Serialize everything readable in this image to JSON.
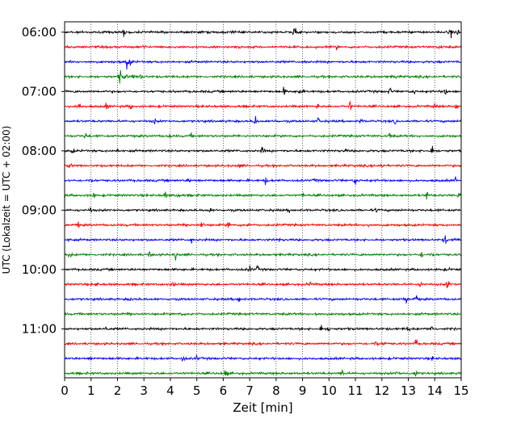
{
  "chart_data": {
    "type": "line",
    "title": "",
    "xlabel": "Zeit  [min]",
    "ylabel": "UTC (Lokalzeit = UTC + 02:00)",
    "xlim": [
      0,
      15
    ],
    "x_ticks": [
      0,
      1,
      2,
      3,
      4,
      5,
      6,
      7,
      8,
      9,
      10,
      11,
      12,
      13,
      14,
      15
    ],
    "x_grid": "dotted vertical lines at each minute",
    "y_ticks": [
      "06:00",
      "07:00",
      "08:00",
      "09:00",
      "10:00",
      "11:00"
    ],
    "trace_interval_minutes": 15,
    "trace_start": "06:00",
    "trace_count": 24,
    "trace_colors": [
      "#000000",
      "#ff0000",
      "#0000ff",
      "#008000"
    ],
    "traces": [
      {
        "start": "06:00",
        "color": "#000000",
        "events": [
          [
            2.25,
            0.7
          ],
          [
            8.7,
            1.0
          ],
          [
            14.6,
            0.8
          ],
          [
            14.85,
            0.7
          ],
          [
            6.3,
            0.2
          ]
        ]
      },
      {
        "start": "06:15",
        "color": "#ff0000",
        "events": [
          [
            0.1,
            0.6
          ],
          [
            3.0,
            0.5
          ],
          [
            6.6,
            0.25
          ],
          [
            10.3,
            0.3
          ],
          [
            14.2,
            0.5
          ]
        ]
      },
      {
        "start": "06:30",
        "color": "#0000ff",
        "events": [
          [
            2.35,
            1.0
          ],
          [
            2.5,
            0.5
          ],
          [
            9.1,
            0.2
          ]
        ]
      },
      {
        "start": "06:45",
        "color": "#008000",
        "events": [
          [
            2.1,
            1.1
          ],
          [
            2.3,
            0.6
          ],
          [
            2.6,
            0.4
          ],
          [
            2.9,
            0.4
          ],
          [
            12.5,
            0.2
          ]
        ]
      },
      {
        "start": "07:00",
        "color": "#000000",
        "events": [
          [
            8.3,
            0.6
          ],
          [
            8.9,
            0.8
          ],
          [
            12.3,
            0.6
          ],
          [
            13.2,
            0.5
          ],
          [
            14.4,
            0.5
          ]
        ]
      },
      {
        "start": "07:15",
        "color": "#ff0000",
        "events": [
          [
            0.55,
            1.0
          ],
          [
            1.6,
            0.5
          ],
          [
            2.5,
            0.4
          ],
          [
            9.6,
            0.6
          ],
          [
            10.8,
            0.7
          ],
          [
            14.0,
            0.5
          ],
          [
            14.8,
            0.5
          ]
        ]
      },
      {
        "start": "07:30",
        "color": "#0000ff",
        "events": [
          [
            3.4,
            0.4
          ],
          [
            7.2,
            1.0
          ],
          [
            8.0,
            0.3
          ],
          [
            9.6,
            0.5
          ],
          [
            11.2,
            0.4
          ],
          [
            12.5,
            0.3
          ]
        ]
      },
      {
        "start": "07:45",
        "color": "#008000",
        "events": [
          [
            0.8,
            0.5
          ],
          [
            4.0,
            0.4
          ],
          [
            4.8,
            0.3
          ],
          [
            12.3,
            0.5
          ]
        ]
      },
      {
        "start": "08:00",
        "color": "#000000",
        "events": [
          [
            0.3,
            0.3
          ],
          [
            2.0,
            0.3
          ],
          [
            7.5,
            0.7
          ],
          [
            10.6,
            0.3
          ],
          [
            13.9,
            0.8
          ]
        ]
      },
      {
        "start": "08:15",
        "color": "#ff0000",
        "events": [
          [
            0.2,
            0.6
          ],
          [
            6.6,
            0.2
          ],
          [
            12.0,
            0.5
          ]
        ]
      },
      {
        "start": "08:30",
        "color": "#0000ff",
        "events": [
          [
            1.0,
            0.3
          ],
          [
            4.7,
            0.3
          ],
          [
            7.6,
            0.5
          ],
          [
            9.5,
            0.4
          ],
          [
            11.0,
            0.7
          ],
          [
            14.8,
            0.5
          ]
        ]
      },
      {
        "start": "08:45",
        "color": "#008000",
        "events": [
          [
            1.1,
            0.3
          ],
          [
            3.8,
            0.5
          ],
          [
            4.3,
            0.4
          ],
          [
            9.0,
            0.3
          ],
          [
            13.7,
            0.8
          ],
          [
            14.9,
            0.6
          ]
        ]
      },
      {
        "start": "09:00",
        "color": "#000000",
        "events": [
          [
            1.0,
            0.3
          ],
          [
            5.5,
            0.3
          ],
          [
            8.5,
            0.3
          ],
          [
            11.8,
            0.3
          ]
        ]
      },
      {
        "start": "09:15",
        "color": "#ff0000",
        "events": [
          [
            0.5,
            0.4
          ],
          [
            4.6,
            0.7
          ],
          [
            5.2,
            0.8
          ],
          [
            6.2,
            0.6
          ],
          [
            7.0,
            0.5
          ],
          [
            11.5,
            0.4
          ]
        ]
      },
      {
        "start": "09:30",
        "color": "#0000ff",
        "events": [
          [
            0.2,
            0.3
          ],
          [
            4.8,
            0.5
          ],
          [
            8.1,
            0.3
          ],
          [
            14.4,
            0.8
          ],
          [
            14.8,
            0.5
          ]
        ]
      },
      {
        "start": "09:45",
        "color": "#008000",
        "events": [
          [
            0.2,
            0.5
          ],
          [
            3.2,
            0.5
          ],
          [
            4.2,
            0.7
          ],
          [
            13.5,
            0.4
          ],
          [
            13.9,
            0.4
          ]
        ]
      },
      {
        "start": "10:00",
        "color": "#000000",
        "events": [
          [
            7.0,
            0.6
          ],
          [
            7.3,
            0.4
          ],
          [
            14.5,
            0.2
          ]
        ]
      },
      {
        "start": "10:15",
        "color": "#ff0000",
        "events": [
          [
            1.2,
            0.3
          ],
          [
            4.1,
            0.5
          ],
          [
            9.3,
            0.3
          ],
          [
            13.5,
            0.7
          ],
          [
            14.5,
            0.9
          ]
        ]
      },
      {
        "start": "10:30",
        "color": "#0000ff",
        "events": [
          [
            6.6,
            0.6
          ],
          [
            12.9,
            0.7
          ],
          [
            13.3,
            0.6
          ],
          [
            2.5,
            0.3
          ]
        ]
      },
      {
        "start": "10:45",
        "color": "#008000",
        "events": [
          [
            2.5,
            0.9
          ],
          [
            4.4,
            0.3
          ],
          [
            9.5,
            0.3
          ]
        ]
      },
      {
        "start": "11:00",
        "color": "#000000",
        "events": [
          [
            1.6,
            0.5
          ],
          [
            9.7,
            0.6
          ],
          [
            10.0,
            0.5
          ],
          [
            13.0,
            0.5
          ],
          [
            13.9,
            0.7
          ]
        ]
      },
      {
        "start": "11:15",
        "color": "#ff0000",
        "events": [
          [
            11.8,
            0.8
          ],
          [
            12.1,
            0.5
          ],
          [
            13.3,
            0.7
          ]
        ]
      },
      {
        "start": "11:30",
        "color": "#0000ff",
        "events": [
          [
            1.0,
            0.3
          ],
          [
            4.5,
            0.5
          ],
          [
            5.0,
            0.4
          ],
          [
            13.9,
            0.3
          ]
        ]
      },
      {
        "start": "11:45",
        "color": "#008000",
        "events": [
          [
            6.1,
            1.0
          ],
          [
            10.5,
            0.7
          ],
          [
            12.6,
            0.4
          ],
          [
            13.3,
            0.8
          ]
        ]
      }
    ]
  }
}
